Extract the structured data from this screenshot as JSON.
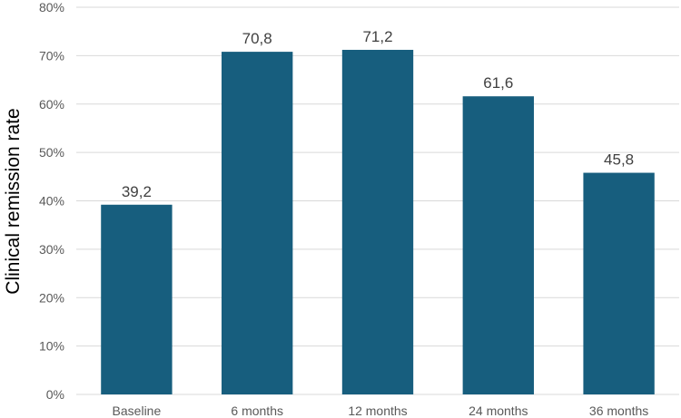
{
  "chart_data": {
    "type": "bar",
    "title": "",
    "xlabel": "",
    "ylabel": "Clinical remission rate",
    "categories": [
      "Baseline",
      "6 months",
      "12 months",
      "24 months",
      "36 months"
    ],
    "values": [
      39.2,
      70.8,
      71.2,
      61.6,
      45.8
    ],
    "value_labels": [
      "39,2",
      "70,8",
      "71,2",
      "61,6",
      "45,8"
    ],
    "ylim": [
      0,
      80
    ],
    "yticks": [
      0,
      10,
      20,
      30,
      40,
      50,
      60,
      70,
      80
    ],
    "ytick_labels": [
      "0%",
      "10%",
      "20%",
      "30%",
      "40%",
      "50%",
      "60%",
      "70%",
      "80%"
    ],
    "grid": true,
    "legend": "none",
    "bar_color": "#175e7e"
  }
}
